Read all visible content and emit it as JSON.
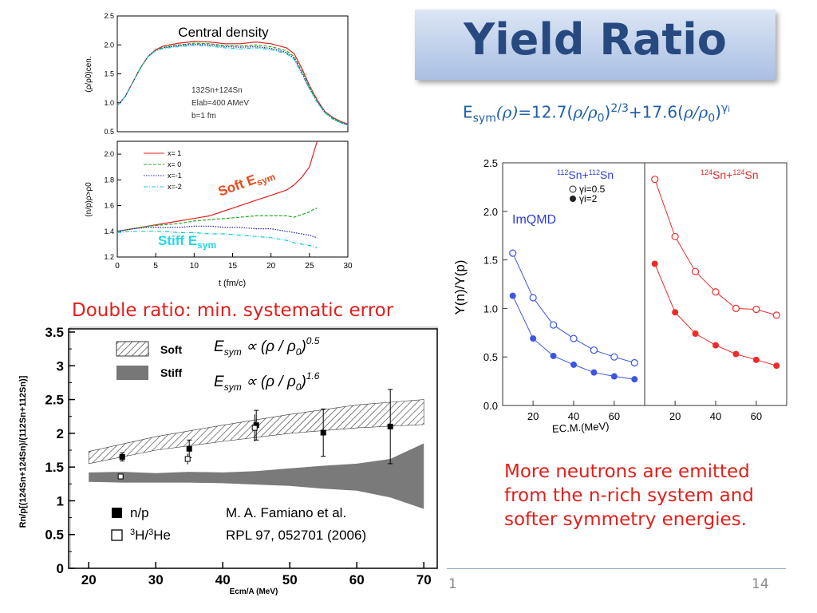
{
  "slide": {
    "title": "Yield Ratio",
    "page_left": "1",
    "page_number": "14",
    "formula": {
      "lhs_E": "E",
      "lhs_sub": "sym",
      "lhs_arg": "(ρ)=",
      "c1": "12.7(",
      "rho1": "ρ/ρ",
      "zero1": "0",
      "close1": ")",
      "exp1": "2/3",
      "plus": "+",
      "c2": "17.6(",
      "rho2": "ρ/ρ",
      "zero2": "0",
      "close2": ")",
      "exp2_g": "γ",
      "exp2_i": "i"
    },
    "caption_double_ratio": "Double ratio: min. systematic error",
    "note_lines": [
      "More neutrons are emitted",
      "from the n-rich system and",
      "softer symmetry energies."
    ],
    "colors": {
      "title": "#27497f",
      "accent_red": "#e0201b",
      "formula_blue": "#1f5fa8"
    }
  },
  "chart_data": [
    {
      "type": "line",
      "title": "Central density",
      "xlabel": "",
      "ylabel": "(ρ/ρ0)cen.",
      "ylim": [
        0.5,
        2.5
      ],
      "yticks": [
        "0.5",
        "1.0",
        "1.5",
        "2.0",
        "2.5"
      ],
      "annotation": [
        "132Sn+124Sn",
        "Elab=400 AMeV",
        "b=1 fm"
      ],
      "x": [
        0,
        1,
        2,
        3,
        4,
        5,
        6,
        8,
        10,
        12,
        14,
        16,
        18,
        20,
        22,
        23,
        24,
        25,
        26,
        27,
        28,
        29,
        30
      ],
      "series": [
        {
          "name": "x=1",
          "values": [
            0.95,
            1.1,
            1.35,
            1.6,
            1.8,
            1.92,
            1.98,
            2.03,
            2.06,
            2.05,
            2.02,
            2.02,
            2.05,
            2.02,
            1.95,
            1.85,
            1.6,
            1.3,
            1.05,
            0.85,
            0.75,
            0.68,
            0.63
          ]
        },
        {
          "name": "x=0",
          "values": [
            0.95,
            1.1,
            1.35,
            1.6,
            1.8,
            1.91,
            1.96,
            2.0,
            2.03,
            2.02,
            1.99,
            1.98,
            2.0,
            1.97,
            1.9,
            1.8,
            1.55,
            1.27,
            1.03,
            0.84,
            0.74,
            0.67,
            0.62
          ]
        },
        {
          "name": "x=-1",
          "values": [
            0.95,
            1.1,
            1.35,
            1.6,
            1.8,
            1.9,
            1.95,
            1.99,
            2.01,
            2.0,
            1.97,
            1.96,
            1.97,
            1.94,
            1.87,
            1.77,
            1.52,
            1.25,
            1.02,
            0.83,
            0.73,
            0.66,
            0.62
          ]
        },
        {
          "name": "x=-2",
          "values": [
            0.95,
            1.1,
            1.35,
            1.6,
            1.8,
            1.9,
            1.94,
            1.97,
            1.99,
            1.98,
            1.95,
            1.93,
            1.95,
            1.92,
            1.85,
            1.75,
            1.5,
            1.24,
            1.01,
            0.83,
            0.72,
            0.66,
            0.61
          ]
        }
      ]
    },
    {
      "type": "line",
      "title": "",
      "xlabel": "t (fm/c)",
      "ylabel": "(n/p)ρ>ρ0",
      "xlim": [
        0,
        30
      ],
      "ylim": [
        1.2,
        2.1
      ],
      "xticks": [
        "0",
        "5",
        "10",
        "15",
        "20",
        "25",
        "30"
      ],
      "yticks": [
        "1.2",
        "1.4",
        "1.6",
        "1.8",
        "2.0"
      ],
      "legend": [
        "x= 1",
        "x= 0",
        "x=-1",
        "x=-2"
      ],
      "labels": {
        "soft": "Soft E",
        "soft_sub": "sym",
        "stiff": "Stiff E",
        "stiff_sub": "sym"
      },
      "x": [
        0,
        2,
        4,
        6,
        8,
        10,
        12,
        14,
        16,
        18,
        20,
        22,
        23,
        24,
        25,
        25.5,
        26
      ],
      "series": [
        {
          "name": "x= 1",
          "values": [
            1.4,
            1.42,
            1.44,
            1.46,
            1.48,
            1.5,
            1.52,
            1.56,
            1.6,
            1.64,
            1.68,
            1.72,
            1.76,
            1.82,
            1.9,
            2.0,
            2.1
          ]
        },
        {
          "name": "x= 0",
          "values": [
            1.4,
            1.42,
            1.44,
            1.45,
            1.46,
            1.48,
            1.49,
            1.5,
            1.51,
            1.52,
            1.52,
            1.52,
            1.51,
            1.53,
            1.55,
            1.57,
            1.58
          ]
        },
        {
          "name": "x=-1",
          "values": [
            1.4,
            1.42,
            1.43,
            1.43,
            1.43,
            1.44,
            1.44,
            1.43,
            1.43,
            1.42,
            1.42,
            1.4,
            1.39,
            1.38,
            1.37,
            1.36,
            1.35
          ]
        },
        {
          "name": "x=-2",
          "values": [
            1.39,
            1.4,
            1.4,
            1.4,
            1.39,
            1.39,
            1.38,
            1.38,
            1.37,
            1.36,
            1.35,
            1.33,
            1.31,
            1.3,
            1.29,
            1.28,
            1.27
          ]
        }
      ]
    },
    {
      "type": "scatter",
      "title": "",
      "xlabel": "Ecm/A (MeV)",
      "ylabel": "Rn/p[(124Sn+124Sn)/(112Sn+112Sn)]",
      "xlim": [
        17,
        72
      ],
      "ylim": [
        0,
        3.5
      ],
      "xticks": [
        "20",
        "30",
        "40",
        "50",
        "60",
        "70"
      ],
      "yticks": [
        "0",
        "0.5",
        "1",
        "1.5",
        "2",
        "2.5",
        "3",
        "3.5"
      ],
      "legend_bands": [
        "Soft",
        "Stiff"
      ],
      "formulas": [
        {
          "e": "E",
          "sub": "sym",
          "rest": " ∝ (ρ / ρ",
          "zero": "0",
          "close": ")",
          "exp": "0.5"
        },
        {
          "e": "E",
          "sub": "sym",
          "rest": " ∝ (ρ / ρ",
          "zero": "0",
          "close": ")",
          "exp": "1.6"
        }
      ],
      "legend_points": [
        {
          "label": "n/p"
        },
        {
          "sup1": "3",
          "mid": "H/",
          "sup2": "3",
          "tail": "He"
        }
      ],
      "reference": [
        "M. A. Famiano et al.",
        "RPL 97, 052701 (2006)"
      ],
      "soft_band": {
        "x": [
          20,
          30,
          40,
          50,
          60,
          70
        ],
        "low": [
          1.55,
          1.75,
          1.88,
          2.0,
          2.08,
          2.13
        ],
        "high": [
          1.73,
          1.95,
          2.12,
          2.28,
          2.42,
          2.5
        ]
      },
      "stiff_band": {
        "x": [
          20,
          25,
          30,
          35,
          40,
          45,
          50,
          55,
          60,
          65,
          70
        ],
        "low": [
          1.28,
          1.27,
          1.27,
          1.27,
          1.26,
          1.24,
          1.22,
          1.18,
          1.15,
          1.05,
          0.88
        ],
        "high": [
          1.42,
          1.43,
          1.41,
          1.43,
          1.42,
          1.44,
          1.48,
          1.52,
          1.55,
          1.62,
          1.85
        ]
      },
      "np_points": [
        {
          "x": 25,
          "y": 1.65,
          "err": 0.06
        },
        {
          "x": 35,
          "y": 1.77,
          "err": 0.13
        },
        {
          "x": 45,
          "y": 2.12,
          "err": 0.22
        },
        {
          "x": 55,
          "y": 2.01,
          "err": 0.35
        },
        {
          "x": 65,
          "y": 2.1,
          "err": 0.55
        }
      ],
      "he_points": [
        {
          "x": 25,
          "y": 1.36,
          "err": 0
        },
        {
          "x": 35,
          "y": 1.62,
          "err": 0.08
        },
        {
          "x": 45,
          "y": 2.08,
          "err": 0.2
        }
      ]
    },
    {
      "type": "line",
      "title": "",
      "xlabel": "EC.M.(MeV)",
      "ylabel": "Y(n)/Y(p)",
      "ylim": [
        0,
        2.5
      ],
      "yticks": [
        "0.0",
        "0.5",
        "1.0",
        "1.5",
        "2.0",
        "2.5"
      ],
      "panel_xticks": [
        "20",
        "40",
        "60"
      ],
      "model_label": "ImQMD",
      "panels": [
        {
          "title_a": "112",
          "title_b": "Sn+",
          "title_c": "112",
          "title_d": "Sn",
          "color": "#3b55e6",
          "legend": [
            "γi=0.5",
            "γi=2"
          ],
          "x": [
            10,
            20,
            30,
            40,
            50,
            60,
            70
          ],
          "open": [
            1.57,
            1.11,
            0.83,
            0.69,
            0.57,
            0.5,
            0.44
          ],
          "filled": [
            1.13,
            0.69,
            0.51,
            0.42,
            0.34,
            0.3,
            0.27
          ]
        },
        {
          "title_a": "124",
          "title_b": "Sn+",
          "title_c": "124",
          "title_d": "Sn",
          "color": "#ee2b2b",
          "x": [
            10,
            20,
            30,
            40,
            50,
            60,
            70
          ],
          "open": [
            2.33,
            1.74,
            1.38,
            1.17,
            1.0,
            0.99,
            0.93
          ],
          "filled": [
            1.46,
            0.96,
            0.74,
            0.62,
            0.53,
            0.47,
            0.41
          ]
        }
      ]
    }
  ]
}
